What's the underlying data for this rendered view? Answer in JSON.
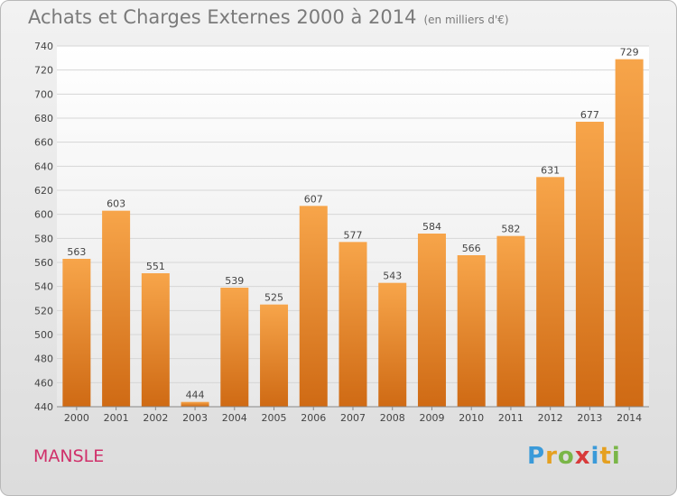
{
  "title": "Achats et Charges Externes 2000 à 2014",
  "unit": "(en milliers d'€)",
  "commune": "MANSLE",
  "logo": {
    "text": "Proxiti",
    "letters": [
      {
        "ch": "P",
        "color": "#3a9ad9"
      },
      {
        "ch": "r",
        "color": "#e5a020"
      },
      {
        "ch": "o",
        "color": "#7ab648"
      },
      {
        "ch": "x",
        "color": "#d83a3a"
      },
      {
        "ch": "i",
        "color": "#3a9ad9"
      },
      {
        "ch": "t",
        "color": "#e5a020"
      },
      {
        "ch": "i",
        "color": "#7ab648"
      }
    ]
  },
  "chart_data": {
    "type": "bar",
    "title": "Achats et Charges Externes 2000 à 2014",
    "categories": [
      "2000",
      "2001",
      "2002",
      "2003",
      "2004",
      "2005",
      "2006",
      "2007",
      "2008",
      "2009",
      "2010",
      "2011",
      "2012",
      "2013",
      "2014"
    ],
    "values": [
      563,
      603,
      551,
      444,
      539,
      525,
      607,
      577,
      543,
      584,
      566,
      582,
      631,
      677,
      729
    ],
    "ylim": [
      440,
      740
    ],
    "yticks": [
      440,
      460,
      480,
      500,
      520,
      540,
      560,
      580,
      600,
      620,
      640,
      660,
      680,
      700,
      720,
      740
    ],
    "grid": true,
    "bar_color": "#f0922e"
  }
}
